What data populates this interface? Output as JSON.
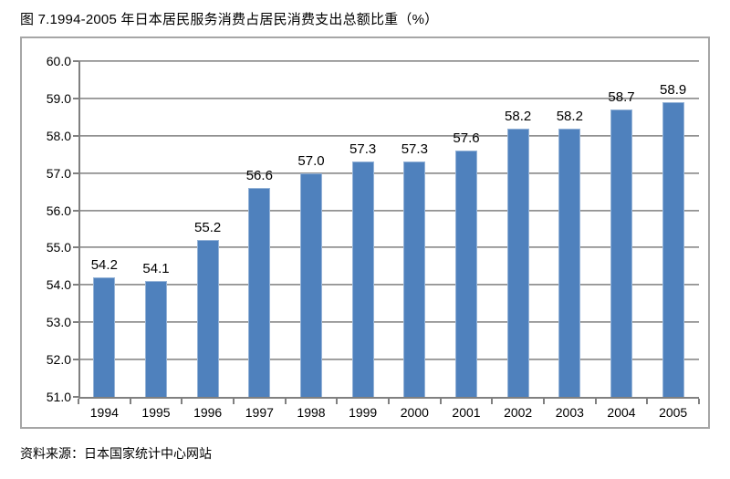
{
  "page": {
    "title": "图 7.1994-2005 年日本居民服务消费占居民消费支出总额比重（%）",
    "source": "资料来源：日本国家统计中心网站"
  },
  "chart_data": {
    "type": "bar",
    "title": "图 7.1994-2005 年日本居民服务消费占居民消费支出总额比重（%）",
    "categories": [
      "1994",
      "1995",
      "1996",
      "1997",
      "1998",
      "1999",
      "2000",
      "2001",
      "2002",
      "2003",
      "2004",
      "2005"
    ],
    "values": [
      54.2,
      54.1,
      55.2,
      56.6,
      57.0,
      57.3,
      57.3,
      57.6,
      58.2,
      58.2,
      58.7,
      58.9
    ],
    "value_labels": [
      "54.2",
      "54.1",
      "55.2",
      "56.6",
      "57.0",
      "57.3",
      "57.3",
      "57.6",
      "58.2",
      "58.2",
      "58.7",
      "58.9"
    ],
    "xlabel": "",
    "ylabel": "",
    "ylim": [
      51.0,
      60.0
    ],
    "ytick_step": 1.0,
    "ytick_labels": [
      "51.0",
      "52.0",
      "53.0",
      "54.0",
      "55.0",
      "56.0",
      "57.0",
      "58.0",
      "59.0",
      "60.0"
    ],
    "grid": true,
    "legend_position": "none",
    "source_note": "资料来源：日本国家统计中心网站",
    "colors": {
      "bar_fill": "#4F81BD",
      "bar_edge": "#95B3D7",
      "gridline": "#8A8A8A",
      "axis": "#808080",
      "frame_border": "#A6A6A6",
      "text": "#000000",
      "background": "#FFFFFF"
    }
  }
}
